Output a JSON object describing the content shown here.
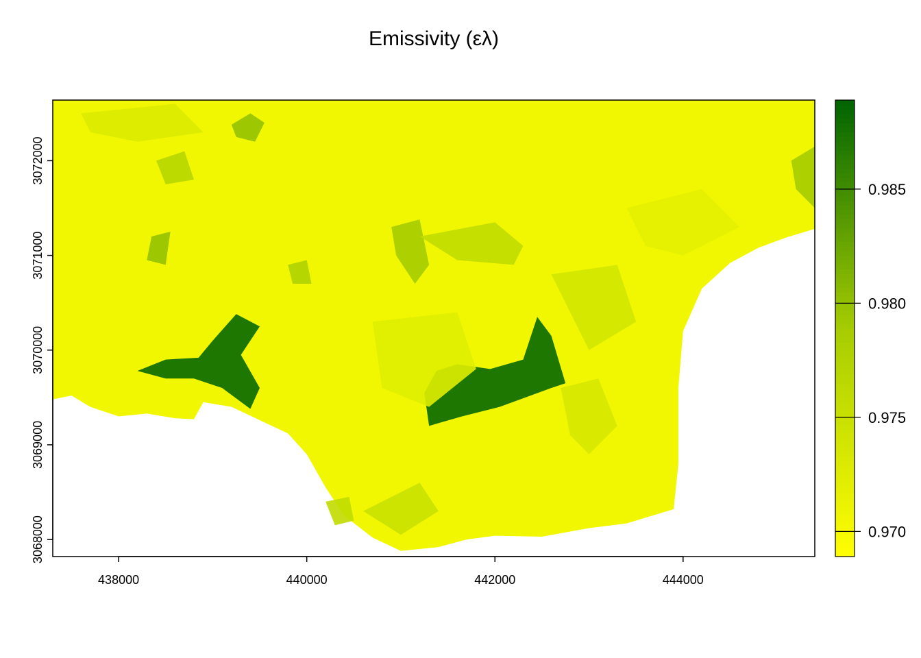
{
  "title": "Emissivity (ελ)",
  "colors": {
    "low": "#ffff00",
    "mid": "#a6cc00",
    "high": "#006400",
    "axis": "#000000",
    "background": "#ffffff"
  },
  "chart_data": {
    "type": "heatmap",
    "title": "Emissivity (ελ)",
    "xlabel": "",
    "ylabel": "",
    "xlim": [
      437300,
      445400
    ],
    "ylim": [
      3067820,
      3072640
    ],
    "x_ticks": [
      438000,
      440000,
      442000,
      444000
    ],
    "x_tick_labels": [
      "438000",
      "440000",
      "442000",
      "444000"
    ],
    "y_ticks": [
      3068000,
      3069000,
      3070000,
      3071000,
      3072000
    ],
    "y_tick_labels": [
      "3068000",
      "3069000",
      "3070000",
      "3071000",
      "3072000"
    ],
    "legend": {
      "position": "right",
      "range": [
        0.9689,
        0.9889
      ],
      "ticks": [
        0.97,
        0.975,
        0.98,
        0.985
      ],
      "tick_labels": [
        "0.970",
        "0.975",
        "0.980",
        "0.985"
      ]
    },
    "land_boundary": [
      [
        437300,
        3069480
      ],
      [
        437500,
        3069520
      ],
      [
        437700,
        3069400
      ],
      [
        438000,
        3069300
      ],
      [
        438300,
        3069330
      ],
      [
        438600,
        3069280
      ],
      [
        438800,
        3069270
      ],
      [
        438900,
        3069450
      ],
      [
        439200,
        3069400
      ],
      [
        439500,
        3069260
      ],
      [
        439800,
        3069120
      ],
      [
        440000,
        3068900
      ],
      [
        440200,
        3068550
      ],
      [
        440400,
        3068250
      ],
      [
        440700,
        3068020
      ],
      [
        441000,
        3067880
      ],
      [
        441400,
        3067920
      ],
      [
        441700,
        3068000
      ],
      [
        442000,
        3068040
      ],
      [
        442500,
        3068030
      ],
      [
        443000,
        3068120
      ],
      [
        443400,
        3068170
      ],
      [
        443900,
        3068320
      ],
      [
        443950,
        3068800
      ],
      [
        443950,
        3069600
      ],
      [
        444000,
        3070200
      ],
      [
        444200,
        3070650
      ],
      [
        444500,
        3070920
      ],
      [
        444800,
        3071080
      ],
      [
        445100,
        3071190
      ],
      [
        445400,
        3071280
      ],
      [
        445400,
        3072640
      ],
      [
        437300,
        3072640
      ]
    ],
    "vegetation_patches": [
      {
        "value": 0.9885,
        "points": [
          [
            438200,
            3069780
          ],
          [
            438500,
            3069900
          ],
          [
            438850,
            3069920
          ],
          [
            439000,
            3070100
          ],
          [
            439250,
            3070380
          ],
          [
            439500,
            3070250
          ],
          [
            439300,
            3069950
          ],
          [
            439500,
            3069600
          ],
          [
            439400,
            3069380
          ],
          [
            439100,
            3069600
          ],
          [
            438800,
            3069700
          ],
          [
            438500,
            3069700
          ]
        ]
      },
      {
        "value": 0.9885,
        "points": [
          [
            441300,
            3069200
          ],
          [
            441650,
            3069300
          ],
          [
            442050,
            3069400
          ],
          [
            442600,
            3069600
          ],
          [
            442750,
            3069650
          ],
          [
            442600,
            3070150
          ],
          [
            442450,
            3070350
          ],
          [
            442300,
            3069900
          ],
          [
            441950,
            3069800
          ],
          [
            441600,
            3069850
          ],
          [
            441380,
            3069780
          ],
          [
            441250,
            3069550
          ]
        ]
      },
      {
        "value": 0.98,
        "points": [
          [
            439200,
            3072380
          ],
          [
            439400,
            3072500
          ],
          [
            439550,
            3072400
          ],
          [
            439450,
            3072200
          ],
          [
            439250,
            3072250
          ]
        ]
      },
      {
        "value": 0.98,
        "points": [
          [
            438350,
            3071200
          ],
          [
            438550,
            3071250
          ],
          [
            438500,
            3070900
          ],
          [
            438300,
            3070950
          ]
        ]
      },
      {
        "value": 0.979,
        "points": [
          [
            440900,
            3071300
          ],
          [
            441200,
            3071380
          ],
          [
            441300,
            3070900
          ],
          [
            441150,
            3070700
          ],
          [
            440950,
            3071000
          ]
        ]
      },
      {
        "value": 0.979,
        "points": [
          [
            445150,
            3072000
          ],
          [
            445400,
            3072150
          ],
          [
            445400,
            3071500
          ],
          [
            445200,
            3071700
          ]
        ]
      },
      {
        "value": 0.978,
        "points": [
          [
            439800,
            3070900
          ],
          [
            440000,
            3070950
          ],
          [
            440050,
            3070700
          ],
          [
            439850,
            3070700
          ]
        ]
      },
      {
        "value": 0.977,
        "points": [
          [
            438400,
            3072000
          ],
          [
            438700,
            3072100
          ],
          [
            438800,
            3071800
          ],
          [
            438500,
            3071750
          ]
        ]
      },
      {
        "value": 0.976,
        "points": [
          [
            441200,
            3071200
          ],
          [
            442000,
            3071350
          ],
          [
            442300,
            3071100
          ],
          [
            442200,
            3070900
          ],
          [
            441600,
            3070950
          ]
        ]
      },
      {
        "value": 0.976,
        "points": [
          [
            440200,
            3068400
          ],
          [
            440450,
            3068450
          ],
          [
            440500,
            3068200
          ],
          [
            440300,
            3068150
          ]
        ]
      },
      {
        "value": 0.975,
        "points": [
          [
            440600,
            3068300
          ],
          [
            441200,
            3068600
          ],
          [
            441400,
            3068300
          ],
          [
            441000,
            3068050
          ]
        ]
      },
      {
        "value": 0.974,
        "points": [
          [
            442600,
            3070800
          ],
          [
            443300,
            3070900
          ],
          [
            443500,
            3070300
          ],
          [
            443000,
            3070000
          ],
          [
            442800,
            3070400
          ]
        ]
      },
      {
        "value": 0.9735,
        "points": [
          [
            442700,
            3069600
          ],
          [
            443100,
            3069700
          ],
          [
            443300,
            3069200
          ],
          [
            443000,
            3068900
          ],
          [
            442800,
            3069100
          ]
        ]
      },
      {
        "value": 0.973,
        "points": [
          [
            437600,
            3072500
          ],
          [
            438600,
            3072600
          ],
          [
            438900,
            3072300
          ],
          [
            438200,
            3072200
          ],
          [
            437700,
            3072300
          ]
        ]
      },
      {
        "value": 0.9725,
        "points": [
          [
            440700,
            3070300
          ],
          [
            441600,
            3070400
          ],
          [
            441800,
            3069800
          ],
          [
            441300,
            3069400
          ],
          [
            440800,
            3069600
          ]
        ]
      },
      {
        "value": 0.972,
        "points": [
          [
            443400,
            3071500
          ],
          [
            444200,
            3071700
          ],
          [
            444600,
            3071300
          ],
          [
            444000,
            3071000
          ],
          [
            443600,
            3071100
          ]
        ]
      }
    ]
  }
}
